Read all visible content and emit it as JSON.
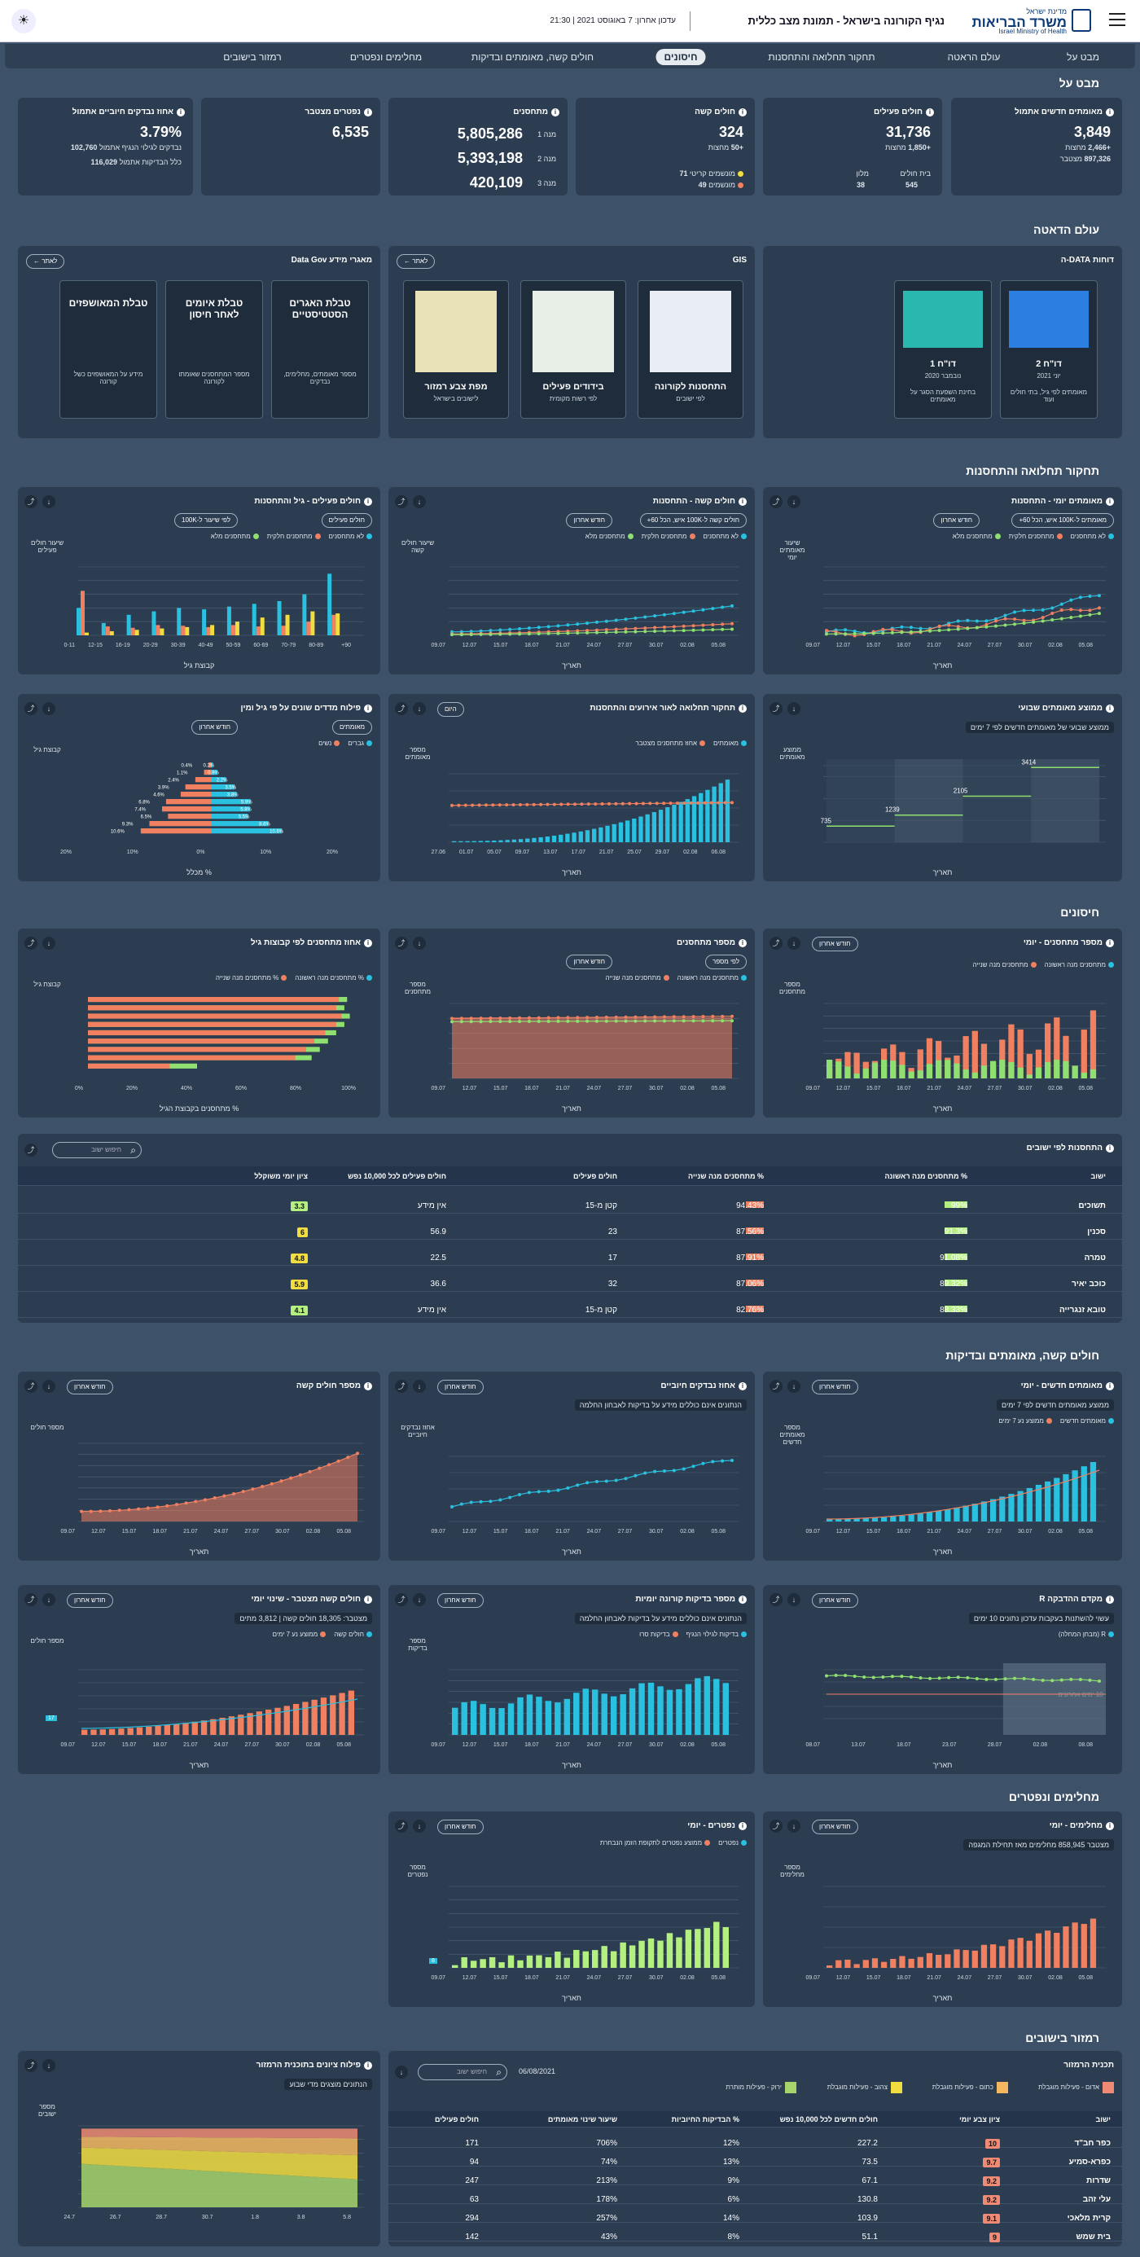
{
  "header": {
    "title": "נגיף הקורונה בישראל - תמונת מצב כללית",
    "updated": "עדכון אחרון: 7 באוגוסט 2021 | 21:30",
    "logo_small": "מדינת ישראל",
    "logo_main": "משרד הבריאות",
    "logo_en": "Israel Ministry of Health"
  },
  "nav": [
    "מבט על",
    "עולם הראטה",
    "תחקור תחלואה והתחסנות",
    "חיסונים",
    "חולים קשה, מאומתים ובדיקות",
    "מחלימים ונפטרים",
    "רמזור בישובים"
  ],
  "sections": {
    "overview": "מבט על",
    "world": "עולם הדאטה",
    "investigation": "תחקור תחלואה והתחסנות",
    "vaccines": "חיסונים",
    "severe": "חולים קשה, מאומתים ובדיקות",
    "recovered": "מחלימים ונפטרים",
    "traffic": "רמזור בישובים"
  },
  "kpi": {
    "new_cases": {
      "title": "מאומתים חדשים אתמול",
      "value": "3,849",
      "l1_v": "+2,466",
      "l1": "מחצות",
      "l2_v": "897,326",
      "l2": "מצטבר"
    },
    "active": {
      "title": "חולים פעילים",
      "value": "31,736",
      "l1_v": "+1,850",
      "l1": "מחצות",
      "h_label": "בית חולים",
      "h_val": "545",
      "m_label": "מלון",
      "m_val": "38"
    },
    "severe": {
      "title": "חולים קשה",
      "value": "324",
      "l1_v": "+50",
      "l1": "מחצות",
      "r1_v": "71",
      "r1": "מונשמים קריטי",
      "r2_v": "49",
      "r2": "מונשמים"
    },
    "vaccinated": {
      "title": "מתחסנים",
      "d1": "מנה 1",
      "v1": "5,805,286",
      "d2": "מנה 2",
      "v2": "5,393,198",
      "d3": "מנה 3",
      "v3": "420,109"
    },
    "deaths": {
      "title": "נפטרים מצטבר",
      "value": "6,535"
    },
    "positive": {
      "title": "אחוז נבדקים חיוביים אתמול",
      "value": "3.79%",
      "l1_v": "102,760",
      "l1": "נבדקים לגילוי הנגיף אתמול",
      "l2_v": "116,029",
      "l2": "כלל הבדיקות אתמול"
    }
  },
  "world": {
    "data_reports": {
      "title": "דוחות DATA-ה",
      "t1": "דו\"ח 2",
      "t1s": "יוני 2021",
      "t1d": "מאומתים לפי גיל, בתי חולים ועוד",
      "t2": "דו\"ח 1",
      "t2s": "נובמבר 2020",
      "t2d": "בחינת השפעת הסגר על מאומתים"
    },
    "gis": {
      "title": "GIS",
      "more": "לאתר",
      "m1": "התחסנות לקורונה",
      "m1s": "לפי ישובים",
      "m2": "בידודים פעילים",
      "m2s": "לפי רשות מקומית",
      "m3": "מפת צבע רמזור",
      "m3s": "לישובים בישראל"
    },
    "datagov": {
      "title": "מאגרי מידע Data Gov",
      "more": "לאתר",
      "d1": "טבלת האגרים הסטטיסטיים",
      "d1d": "מספר מאומתים, מחלימים, נבדקים",
      "d2": "טבלת איומים לאחר חיסון",
      "d2d": "מספר המתחסנים שאומתו לקורונה",
      "d3": "טבלת המאושפזים",
      "d3d": "מידע על המאושפזים כשל קורונה"
    }
  },
  "charts": {
    "c1": {
      "title": "מאומתים יומי - התחסנות",
      "sel1": "מאומתים ל-100K איש, הכל 60+",
      "sel2": "חודש אחרון",
      "leg": [
        "לא מתחסנים",
        "מתחסנים חלקית",
        "מתחסנים מלא"
      ],
      "ylabel": "שיעור מאומתים יומי",
      "xlabel": "תאריך"
    },
    "c2": {
      "title": "חולים קשה - התחסנות",
      "sel1": "חולים קשה ל-100K איש, הכל 60+",
      "sel2": "חודש אחרון",
      "leg": [
        "לא מתחסנים",
        "מתחסנים חלקית",
        "מתחסנים מלא"
      ],
      "ylabel": "שיעור חולים קשה",
      "xlabel": "תאריך"
    },
    "c3": {
      "title": "חולים פעילים - גיל והתחסנות",
      "sel1": "חולים פעילים",
      "sel2": "לפי שיעור ל-100K",
      "leg": [
        "לא מתחסנים",
        "מתחסנים חלקית",
        "מתחסנים מלא"
      ],
      "ylabel": "שיעור חולים פעילים",
      "xlabel": "קבוצת גיל"
    },
    "c4": {
      "title": "ממוצע מאומתים שבועי",
      "note": "ממוצע שבועי של מאומתים חדשים לפי 7 ימים",
      "ylabel": "ממוצע מאומתים",
      "xlabel": "תאריך"
    },
    "c5": {
      "title": "תחקור תחלואה לאור אירועים והתחסנות",
      "sel": "היום",
      "leg": [
        "מאומתים",
        "אחוז מתחסנים מצטבר"
      ],
      "ylabel": "מספר מאומתים",
      "xlabel": "תאריך"
    },
    "c6": {
      "title": "פילוח מדדים שונים על פי גיל ומין",
      "sel1": "מאומתים",
      "sel2": "חודש אחרון",
      "leg": [
        "גברים",
        "נשים"
      ],
      "ylabel": "קבוצת גיל",
      "xlabel": "% מכלל"
    },
    "c7": {
      "title": "מספר מתחסנים - יומי",
      "sel": "חודש אחרון",
      "leg": [
        "מתחסנים מנה ראשונה",
        "מתחסנים מנה שנייה"
      ],
      "ylabel": "מספר מתחסנים",
      "xlabel": "תאריך"
    },
    "c8": {
      "title": "מספר מתחסנים",
      "sel1": "לפי מספר",
      "sel2": "חודש אחרון",
      "leg": [
        "מתחסנים מנה ראשונה",
        "מתחסנים מנה שנייה"
      ],
      "ylabel": "מספר מתחסנים",
      "xlabel": "תאריך"
    },
    "c9": {
      "title": "אחוז מתחסנים לפי קבוצות גיל",
      "leg": [
        "% מתחסנים מנה ראשונה",
        "% מתחסנים מנה שנייה"
      ],
      "ylabel": "קבוצת גיל",
      "xlabel": "% מתחסנים בקבוצת הגיל"
    },
    "c10": {
      "title": "מאומתים חדשים - יומי",
      "sel": "חודש אחרון",
      "note": "ממוצע מאומתים חדשים לפי 7 ימים",
      "leg": [
        "מאומתים חדשים",
        "ממוצע נע 7 ימים"
      ],
      "ylabel": "מספר מאומתים חדשים",
      "xlabel": "תאריך"
    },
    "c11": {
      "title": "אחוז נבדקים חיוביים",
      "sel": "חודש אחרון",
      "note": "הנתונים אינם כוללים מידע על בדיקות לאבחון החלמה",
      "ylabel": "אחוז נבדקים חיוביים",
      "xlabel": "תאריך"
    },
    "c12": {
      "title": "מספר חולים קשה",
      "sel": "חודש אחרון",
      "ylabel": "מספר חולים",
      "xlabel": "תאריך"
    },
    "c13": {
      "title": "מקדם ההדבקה R",
      "sel": "חודש אחרון",
      "note": "עשוי להשתנות בעקבות עדכון נתונים 10 ימים",
      "leg": [
        "R (מבחן המחלה)"
      ],
      "zone": "10 ימים אחרונים",
      "ylabel": "",
      "xlabel": "תאריך"
    },
    "c14": {
      "title": "מספר בדיקות קורונה יומיות",
      "sel": "חודש אחרון",
      "note": "הנתונים אינם כוללים מידע על בדיקות לאבחון החלמה",
      "leg": [
        "בדיקות לגילוי הנגיף",
        "בדיקות סרו"
      ],
      "ylabel": "מספר בדיקות",
      "xlabel": "תאריך"
    },
    "c15": {
      "title": "חולים קשה מצטבר - שינוי יומי",
      "sel": "חודש אחרון",
      "note": "מצטבר: 18,305 חולים קשה | 3,812 מתים",
      "leg": [
        "חולים קשה",
        "ממוצע נע 7 ימים"
      ],
      "ylabel": "מספר חולים",
      "xlabel": "תאריך",
      "badge": "17"
    },
    "c16": {
      "title": "מחלימים - יומי",
      "sel": "חודש אחרון",
      "note": "מצטבר 858,945 מחלימים מאז תחילת המגפה",
      "ylabel": "מספר מחלימים",
      "xlabel": "תאריך"
    },
    "c17": {
      "title": "נפטרים - יומי",
      "sel": "חודש אחרון",
      "leg": [
        "נפטרים",
        "ממוצע נפטרים לתקופת הזמן הנבחרת"
      ],
      "ylabel": "מספר נפטרים",
      "xlabel": "תאריך",
      "badge": "8"
    },
    "c18": {
      "title": "פילוח ציונים בתוכנית הרמזור",
      "note": "הנתונים מוצגים מדי שבוע",
      "ylabel": "מספר ישובים",
      "xlabel": ""
    }
  },
  "xdates": [
    "09.07",
    "12.07",
    "15.07",
    "18.07",
    "21.07",
    "24.07",
    "27.07",
    "30.07",
    "02.08",
    "05.08"
  ],
  "table_vacc": {
    "title": "התחסנות לפי ישובים",
    "search": "חיפוש ישוב",
    "cols": [
      "ישוב",
      "% מתחסנים מנה ראשונה",
      "% מתחסנים מנה שנייה",
      "חולים פעילים",
      "חולים פעילים לכל 10,000 נפש",
      "ציון יומי משוקלל"
    ],
    "rows": [
      [
        "תשוכים",
        "99%",
        "94.43%",
        "קטן מ-15",
        "אין מידע",
        "3.3"
      ],
      [
        "סכנין",
        "91.3%",
        "87.56%",
        "23",
        "56.9",
        "6"
      ],
      [
        "טמרה",
        "91.08%",
        "87.91%",
        "17",
        "22.5",
        "4.8"
      ],
      [
        "כוכב יאיר",
        "89.32%",
        "87.06%",
        "32",
        "36.6",
        "5.9"
      ],
      [
        "טובא זנגרייה",
        "88.33%",
        "82.76%",
        "קטן מ-15",
        "אין מידע",
        "4.1"
      ]
    ]
  },
  "table_traffic": {
    "title": "תכנית הרמזור",
    "search": "חיפוש ישוב",
    "date": "06/08/2021",
    "cols": [
      "ישוב",
      "ציון צבע יומי",
      "חולים חדשים לכל 10,000 נפש",
      "% הבדיקות החיוביות",
      "שיעור שינוי מאומתים",
      "חולים פעילים"
    ],
    "legend": [
      "אדום - פעילות מוגבלת",
      "כתום - פעילות מוגבלת",
      "צהוב - פעילות מוגבלת",
      "ירוק - פעילות מותרת"
    ],
    "rows": [
      [
        "כפר חב\"ד",
        "10",
        "227.2",
        "12%",
        "706%",
        "171"
      ],
      [
        "כפרא-סמיע",
        "9.7",
        "73.5",
        "13%",
        "74%",
        "94"
      ],
      [
        "שדרות",
        "9.2",
        "67.1",
        "9%",
        "213%",
        "247"
      ],
      [
        "עלי זהב",
        "9.2",
        "130.8",
        "6%",
        "178%",
        "63"
      ],
      [
        "קרית מלאכי",
        "9.1",
        "103.9",
        "14%",
        "257%",
        "294"
      ],
      [
        "בית שמש",
        "9",
        "51.1",
        "8%",
        "43%",
        "142"
      ]
    ]
  },
  "colors": {
    "blue": "#2ac0df",
    "orange": "#f08060",
    "green": "#8fe070",
    "lightgreen": "#b4f080",
    "yellow": "#f2dd40",
    "red": "#f08a74"
  },
  "ui": {
    "icon_mode": "☀",
    "icon_info": "i",
    "icon_more": "⋮",
    "icon_share": "⤴",
    "icon_down": "↓",
    "icon_search": "⌕"
  }
}
